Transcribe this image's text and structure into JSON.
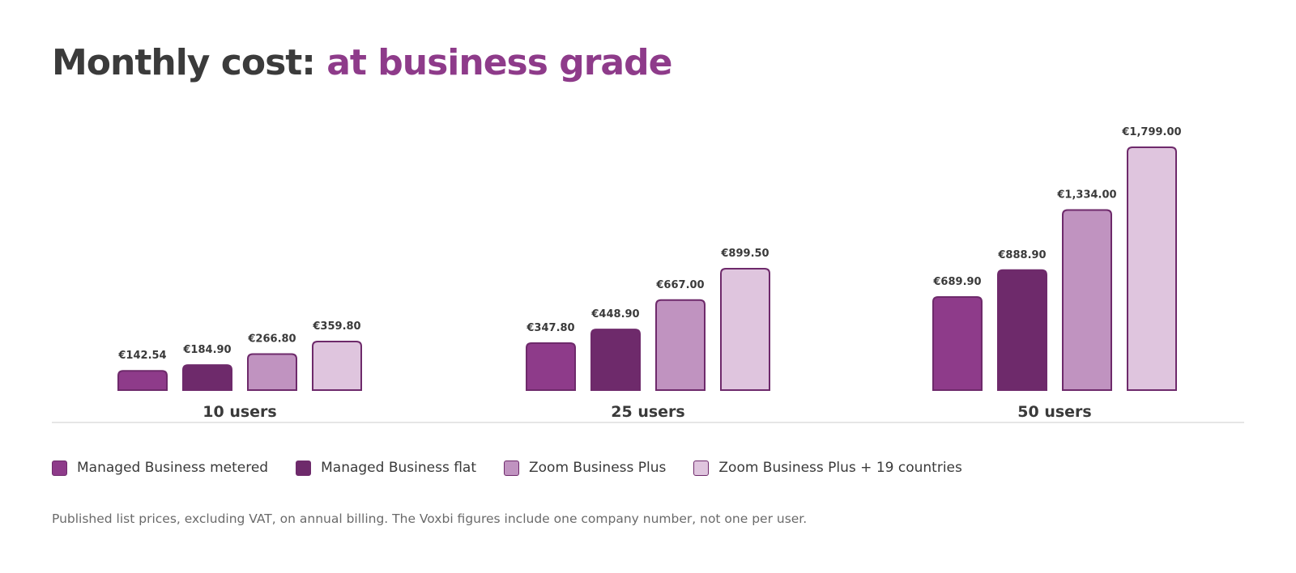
{
  "title": {
    "main": "Monthly cost: ",
    "accent": "at business grade"
  },
  "colors": {
    "title_main": "#3b3b3b",
    "title_accent": "#8e3b8a",
    "bar_stroke": "#6e2a6b",
    "axis": "#dddddd"
  },
  "chart_data": {
    "type": "bar",
    "title": "Monthly cost: at business grade",
    "categories": [
      "10 users",
      "25 users",
      "50 users"
    ],
    "series": [
      {
        "name": "Managed Business metered",
        "color": "#8e3b8a",
        "values": [
          142.54,
          347.8,
          689.9
        ],
        "labels": [
          "€142.54",
          "€347.80",
          "€689.90"
        ]
      },
      {
        "name": "Managed Business flat",
        "color": "#6e2a6b",
        "values": [
          184.9,
          448.9,
          888.9
        ],
        "labels": [
          "€184.90",
          "€448.90",
          "€888.90"
        ]
      },
      {
        "name": "Zoom Business Plus",
        "color": "#c093c0",
        "values": [
          266.8,
          667.0,
          1334.0
        ],
        "labels": [
          "€266.80",
          "€667.00",
          "€1,334.00"
        ]
      },
      {
        "name": "Zoom Business Plus + 19 countries",
        "color": "#dfc5de",
        "values": [
          359.8,
          899.5,
          1799.0
        ],
        "labels": [
          "€359.80",
          "€899.50",
          "€1,799.00"
        ]
      }
    ],
    "ylim": [
      0,
      1799
    ],
    "grid": false,
    "legend_position": "bottom"
  },
  "footnote": "Published list prices, excluding VAT, on annual billing. The Voxbi figures include one company number, not one per user."
}
